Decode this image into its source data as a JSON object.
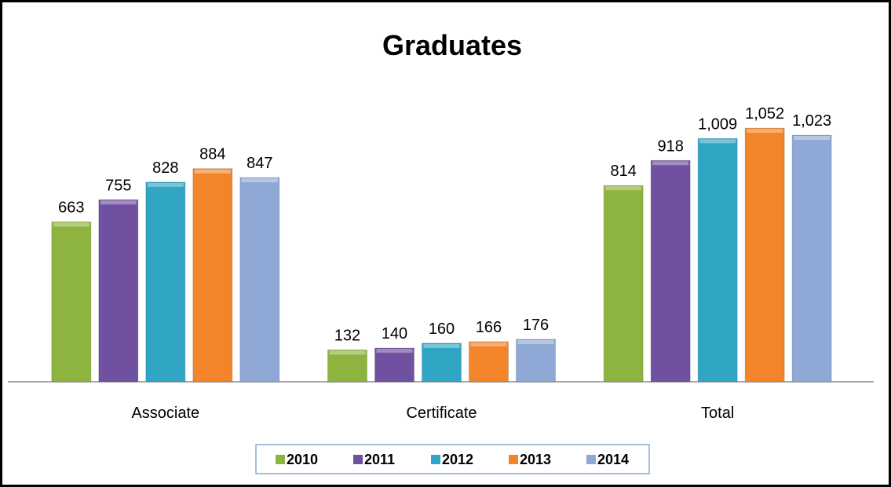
{
  "chart_data": {
    "type": "bar",
    "title": "Graduates",
    "categories": [
      "Associate",
      "Certificate",
      "Total"
    ],
    "series": [
      {
        "name": "2010",
        "color": "#8db43e",
        "values": [
          663,
          132,
          814
        ],
        "value_labels": [
          "663",
          "132",
          "814"
        ]
      },
      {
        "name": "2011",
        "color": "#7050a0",
        "values": [
          755,
          140,
          918
        ],
        "value_labels": [
          "755",
          "140",
          "918"
        ]
      },
      {
        "name": "2012",
        "color": "#31a5c4",
        "values": [
          828,
          160,
          1009
        ],
        "value_labels": [
          "828",
          "160",
          "1,009"
        ]
      },
      {
        "name": "2013",
        "color": "#f2842a",
        "values": [
          884,
          166,
          1052
        ],
        "value_labels": [
          "884",
          "166",
          "1,052"
        ]
      },
      {
        "name": "2014",
        "color": "#8fa8d6",
        "values": [
          847,
          176,
          1023
        ],
        "value_labels": [
          "847",
          "176",
          "1,023"
        ]
      }
    ],
    "ylim": [
      0,
      1160
    ],
    "legend": "bottom"
  }
}
